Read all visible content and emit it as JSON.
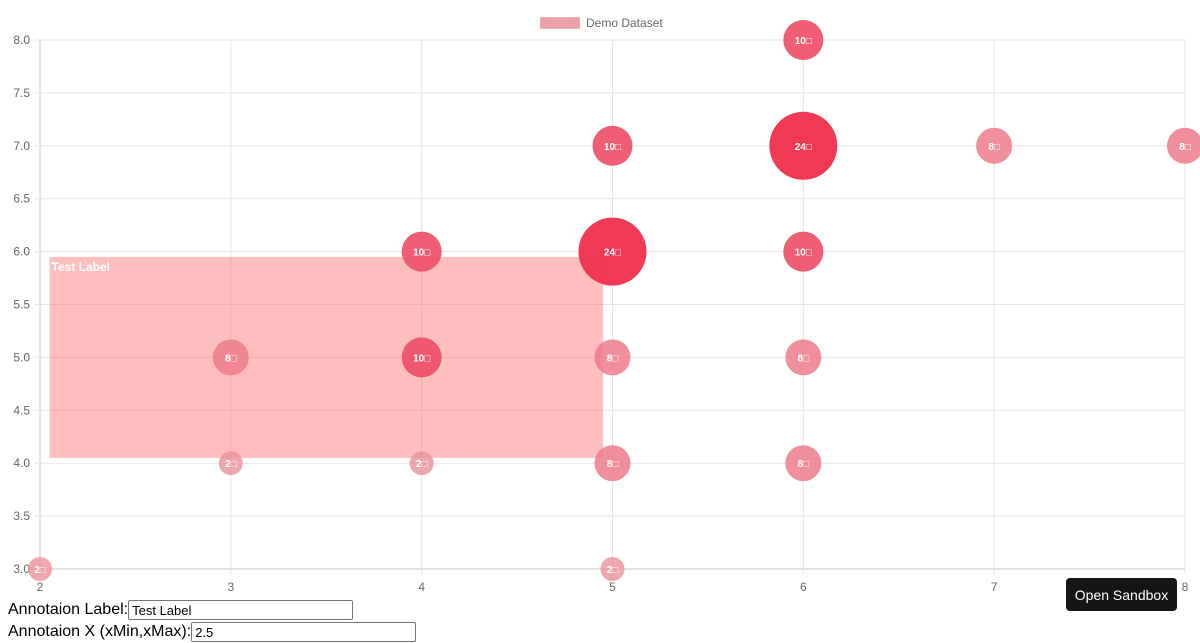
{
  "legend": {
    "label": "Demo Dataset",
    "color": "#eca2a9"
  },
  "annotation": {
    "label": "Test Label",
    "xMin": 2.05,
    "xMax": 4.95,
    "yMin": 4.05,
    "yMax": 5.95,
    "color": "rgba(255,99,99,0.42)"
  },
  "form": {
    "label_field_label": "Annotaion Label:",
    "label_field_value": "Test Label",
    "x_field_label": "Annotaion X (xMin,xMax):",
    "x_field_value": "2.5"
  },
  "sandbox_button": "Open Sandbox",
  "chart_data": {
    "type": "bubble",
    "title": "",
    "legend": [
      "Demo Dataset"
    ],
    "legend_position": "top",
    "xlabel": "",
    "ylabel": "",
    "xlim": [
      2,
      8
    ],
    "ylim": [
      3,
      8
    ],
    "grid": true,
    "x_ticks": [
      "2",
      "3",
      "4",
      "5",
      "6",
      "7",
      "8"
    ],
    "y_ticks": [
      "3.0",
      "3.5",
      "4.0",
      "4.5",
      "5.0",
      "5.5",
      "6.0",
      "6.5",
      "7.0",
      "7.5",
      "8.0"
    ],
    "series": [
      {
        "name": "Demo Dataset",
        "points": [
          {
            "x": 2,
            "y": 3,
            "r": 2,
            "label": "2"
          },
          {
            "x": 3,
            "y": 4,
            "r": 2,
            "label": "2"
          },
          {
            "x": 3,
            "y": 5,
            "r": 8,
            "label": "8"
          },
          {
            "x": 4,
            "y": 4,
            "r": 2,
            "label": "2"
          },
          {
            "x": 4,
            "y": 5,
            "r": 10,
            "label": "10"
          },
          {
            "x": 4,
            "y": 6,
            "r": 10,
            "label": "10"
          },
          {
            "x": 5,
            "y": 3,
            "r": 2,
            "label": "2"
          },
          {
            "x": 5,
            "y": 4,
            "r": 8,
            "label": "8"
          },
          {
            "x": 5,
            "y": 5,
            "r": 8,
            "label": "8"
          },
          {
            "x": 5,
            "y": 6,
            "r": 24,
            "label": "24"
          },
          {
            "x": 5,
            "y": 7,
            "r": 10,
            "label": "10"
          },
          {
            "x": 6,
            "y": 4,
            "r": 8,
            "label": "8"
          },
          {
            "x": 6,
            "y": 5,
            "r": 8,
            "label": "8"
          },
          {
            "x": 6,
            "y": 6,
            "r": 10,
            "label": "10"
          },
          {
            "x": 6,
            "y": 7,
            "r": 24,
            "label": "24"
          },
          {
            "x": 6,
            "y": 8,
            "r": 10,
            "label": "10"
          },
          {
            "x": 7,
            "y": 7,
            "r": 8,
            "label": "8"
          },
          {
            "x": 8,
            "y": 7,
            "r": 8,
            "label": "8"
          }
        ]
      }
    ],
    "annotations": [
      {
        "type": "box",
        "label": "Test Label",
        "xMin": 2.05,
        "xMax": 4.95,
        "yMin": 4.05,
        "yMax": 5.95
      }
    ]
  }
}
